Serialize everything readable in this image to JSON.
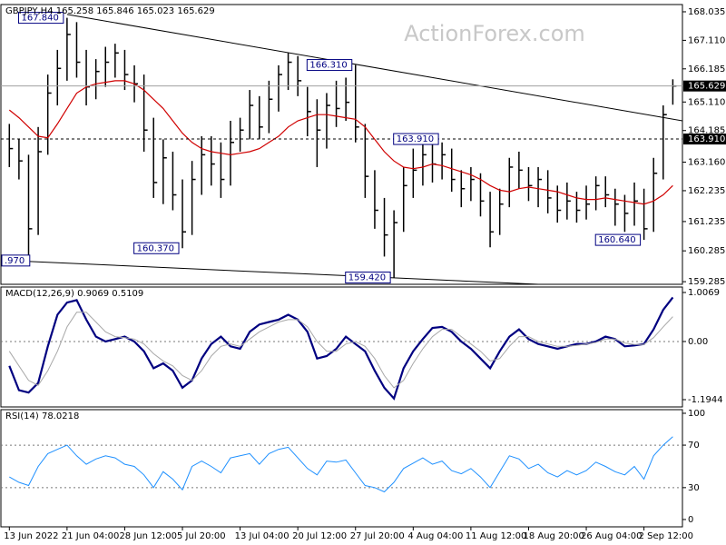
{
  "chart_data": [
    {
      "type": "ohlc",
      "title": "GBPJPY,H4 165.258 165.846 165.023 165.629",
      "watermark": "ActionForex.com",
      "xlim": [
        -0.5,
        70
      ],
      "ylim": [
        159.2,
        168.27
      ],
      "yticks": [
        168.035,
        {
          "value": 167.11,
          "label": "167.110"
        },
        166.185,
        {
          "value": 165.11,
          "label": "165.110"
        },
        164.185,
        {
          "value": 163.16,
          "label": "163.160"
        },
        162.235,
        161.235,
        160.285,
        159.285
      ],
      "bar_color": "#000000",
      "high": [
        164.4,
        163.9,
        163.4,
        164.3,
        166.0,
        166.8,
        167.84,
        167.7,
        166.8,
        166.5,
        166.9,
        167.0,
        166.8,
        166.3,
        166.0,
        164.6,
        163.9,
        163.5,
        162.6,
        163.2,
        164.0,
        164.0,
        163.8,
        164.5,
        164.6,
        165.5,
        165.3,
        165.8,
        166.3,
        166.7,
        166.6,
        165.6,
        165.2,
        165.4,
        165.8,
        165.9,
        166.31,
        164.4,
        162.9,
        162.0,
        161.6,
        163.0,
        163.6,
        163.9,
        163.91,
        163.8,
        163.6,
        162.9,
        163.0,
        162.8,
        162.2,
        162.3,
        163.3,
        163.5,
        163.0,
        163.0,
        162.9,
        162.4,
        162.5,
        162.2,
        162.4,
        162.7,
        162.7,
        162.3,
        162.1,
        162.5,
        162.3,
        163.3,
        165.0,
        165.846
      ],
      "low": [
        163.0,
        162.6,
        159.97,
        160.8,
        163.4,
        165.0,
        165.8,
        165.9,
        165.0,
        165.2,
        165.6,
        165.9,
        165.5,
        165.1,
        163.5,
        162.0,
        161.8,
        161.6,
        160.37,
        160.8,
        162.1,
        162.4,
        162.0,
        162.4,
        163.5,
        163.9,
        163.9,
        164.1,
        164.8,
        165.5,
        165.3,
        164.0,
        163.0,
        163.6,
        164.3,
        164.5,
        163.8,
        162.0,
        161.0,
        160.1,
        159.42,
        160.9,
        162.0,
        162.4,
        162.5,
        162.6,
        162.2,
        161.7,
        161.9,
        161.4,
        160.4,
        160.8,
        161.7,
        162.3,
        161.9,
        161.7,
        161.5,
        161.2,
        161.3,
        161.2,
        161.3,
        161.6,
        161.7,
        161.1,
        160.9,
        161.1,
        160.64,
        160.9,
        162.6,
        165.023
      ],
      "close": [
        163.6,
        163.2,
        161.0,
        163.5,
        165.4,
        166.2,
        167.3,
        166.4,
        165.6,
        166.1,
        166.4,
        166.7,
        166.0,
        165.7,
        164.2,
        162.5,
        163.3,
        162.1,
        160.9,
        162.6,
        163.4,
        163.1,
        162.6,
        163.8,
        164.2,
        165.0,
        164.3,
        165.2,
        166.0,
        166.4,
        165.8,
        164.8,
        164.2,
        165.0,
        164.9,
        165.1,
        164.3,
        162.7,
        161.6,
        160.8,
        161.2,
        162.4,
        162.9,
        163.4,
        163.1,
        163.4,
        162.6,
        162.3,
        162.6,
        161.9,
        160.9,
        161.8,
        163.0,
        162.9,
        162.4,
        162.6,
        162.0,
        161.6,
        161.9,
        161.6,
        161.8,
        162.4,
        162.1,
        161.8,
        161.5,
        161.9,
        161.0,
        162.8,
        164.7,
        165.629
      ],
      "ma": {
        "color": "#d00000",
        "values": [
          164.85,
          164.6,
          164.3,
          164.0,
          163.95,
          164.4,
          164.9,
          165.4,
          165.6,
          165.7,
          165.75,
          165.8,
          165.8,
          165.7,
          165.5,
          165.2,
          164.9,
          164.5,
          164.1,
          163.8,
          163.6,
          163.5,
          163.45,
          163.4,
          163.45,
          163.5,
          163.6,
          163.8,
          164.0,
          164.3,
          164.5,
          164.6,
          164.7,
          164.7,
          164.65,
          164.6,
          164.55,
          164.3,
          163.9,
          163.5,
          163.2,
          163.0,
          162.95,
          163.0,
          163.1,
          163.05,
          162.95,
          162.85,
          162.75,
          162.6,
          162.4,
          162.25,
          162.2,
          162.3,
          162.35,
          162.3,
          162.25,
          162.2,
          162.1,
          162.0,
          161.95,
          161.95,
          162.0,
          161.95,
          161.9,
          161.85,
          161.8,
          161.9,
          162.1,
          162.4
        ]
      },
      "trendlines": [
        {
          "x": [
            6,
            70
          ],
          "y": [
            167.95,
            164.5
          ]
        },
        {
          "x": [
            0,
            55
          ],
          "y": [
            159.97,
            159.2
          ]
        }
      ],
      "levels": [
        {
          "value": 165.629,
          "label": "165.629",
          "style": "solid",
          "color": "#a0a0a0"
        },
        {
          "value": 163.91,
          "label": "163.910",
          "style": "dashed",
          "color": "#000000"
        }
      ],
      "annotations": [
        {
          "x": 6,
          "value": 167.84,
          "label": "167.840"
        },
        {
          "x": 36,
          "value": 166.31,
          "label": "166.310"
        },
        {
          "x": 45,
          "value": 163.91,
          "label": "163.910"
        },
        {
          "x": 18,
          "value": 160.37,
          "label": "160.370"
        },
        {
          "x": 40,
          "value": 159.42,
          "label": "159.420"
        },
        {
          "x": 66,
          "value": 160.64,
          "label": "160.640"
        },
        {
          "x": 2,
          "value": 159.97,
          "label": ".970"
        }
      ]
    },
    {
      "type": "line",
      "title": "MACD(12,26,9) 0.9069 0.5109",
      "xlim": [
        -0.5,
        70
      ],
      "ylim": [
        -1.344,
        1.119
      ],
      "yticks": [
        1.0069,
        {
          "value": 0,
          "label": "0.00"
        },
        -1.1944
      ],
      "grid": "inner",
      "series": [
        {
          "color": "#000080",
          "width": 2.2,
          "values": [
            -0.5,
            -1.0,
            -1.05,
            -0.85,
            -0.1,
            0.55,
            0.8,
            0.85,
            0.45,
            0.1,
            0.0,
            0.05,
            0.1,
            0.0,
            -0.2,
            -0.55,
            -0.45,
            -0.6,
            -0.95,
            -0.8,
            -0.35,
            -0.05,
            0.1,
            -0.1,
            -0.15,
            0.2,
            0.35,
            0.4,
            0.45,
            0.55,
            0.45,
            0.2,
            -0.35,
            -0.3,
            -0.15,
            0.1,
            -0.05,
            -0.2,
            -0.6,
            -0.95,
            -1.17,
            -0.55,
            -0.2,
            0.05,
            0.28,
            0.3,
            0.2,
            0.0,
            -0.15,
            -0.35,
            -0.55,
            -0.2,
            0.1,
            0.25,
            0.05,
            -0.05,
            -0.1,
            -0.15,
            -0.1,
            -0.05,
            -0.05,
            0.0,
            0.1,
            0.05,
            -0.1,
            -0.08,
            -0.05,
            0.25,
            0.65,
            0.9069
          ]
        },
        {
          "color": "#a8a8a8",
          "width": 1,
          "values": [
            -0.2,
            -0.5,
            -0.8,
            -0.9,
            -0.6,
            -0.2,
            0.3,
            0.6,
            0.6,
            0.4,
            0.2,
            0.1,
            0.08,
            0.05,
            -0.05,
            -0.25,
            -0.4,
            -0.5,
            -0.7,
            -0.8,
            -0.6,
            -0.3,
            -0.1,
            -0.05,
            -0.1,
            0.05,
            0.2,
            0.3,
            0.4,
            0.45,
            0.45,
            0.3,
            0.0,
            -0.2,
            -0.2,
            -0.05,
            0.0,
            -0.1,
            -0.35,
            -0.7,
            -0.95,
            -0.8,
            -0.45,
            -0.15,
            0.1,
            0.25,
            0.25,
            0.1,
            -0.05,
            -0.2,
            -0.4,
            -0.35,
            -0.1,
            0.1,
            0.1,
            0.0,
            -0.05,
            -0.1,
            -0.1,
            -0.08,
            -0.05,
            -0.02,
            0.05,
            0.05,
            -0.03,
            -0.06,
            -0.06,
            0.08,
            0.3,
            0.5109
          ]
        }
      ]
    },
    {
      "type": "line",
      "title": "RSI(14) 78.0218",
      "xlim": [
        -0.5,
        70
      ],
      "ylim": [
        -6.9,
        103.4
      ],
      "yticks": [
        100,
        70,
        30,
        0
      ],
      "grid": "inner",
      "xticks": [
        {
          "value": 0,
          "label": "13 Jun 2022"
        },
        {
          "value": 6,
          "label": "21 Jun 04:00"
        },
        {
          "value": 12,
          "label": "28 Jun 12:00"
        },
        {
          "value": 18,
          "label": "5 Jul 20:00"
        },
        {
          "value": 24,
          "label": "13 Jul 04:00"
        },
        {
          "value": 30,
          "label": "20 Jul 12:00"
        },
        {
          "value": 36,
          "label": "27 Jul 20:00"
        },
        {
          "value": 42,
          "label": "4 Aug 04:00"
        },
        {
          "value": 48,
          "label": "11 Aug 12:00"
        },
        {
          "value": 54,
          "label": "18 Aug 20:00"
        },
        {
          "value": 60,
          "label": "26 Aug 04:00"
        },
        {
          "value": 66,
          "label": "2 Sep 12:00"
        }
      ],
      "series": [
        {
          "color": "#1e90ff",
          "width": 1,
          "values": [
            40,
            35,
            32,
            50,
            62,
            66,
            70,
            60,
            52,
            57,
            60,
            58,
            52,
            50,
            42,
            30,
            45,
            38,
            28,
            50,
            55,
            50,
            44,
            58,
            60,
            62,
            52,
            62,
            66,
            68,
            58,
            48,
            42,
            55,
            54,
            56,
            44,
            32,
            30,
            26,
            35,
            48,
            53,
            58,
            52,
            55,
            46,
            43,
            48,
            40,
            30,
            45,
            60,
            57,
            48,
            52,
            44,
            40,
            46,
            42,
            46,
            54,
            50,
            45,
            42,
            50,
            38,
            60,
            70,
            78.0218
          ]
        }
      ]
    }
  ]
}
